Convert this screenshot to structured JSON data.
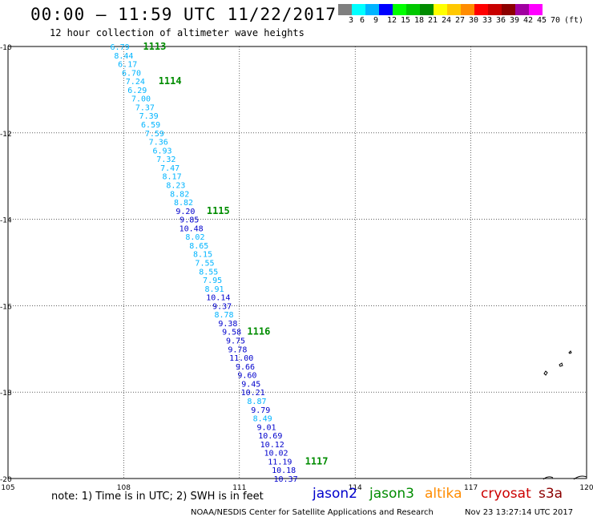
{
  "header": {
    "title": "00:00 — 11:59 UTC 11/22/2017",
    "subtitle": "12 hour collection of altimeter wave heights"
  },
  "legend": {
    "colors": [
      "#7f7f7f",
      "#00ffff",
      "#00b4ff",
      "#0000ff",
      "#00ff00",
      "#00c800",
      "#008c00",
      "#ffff00",
      "#ffc800",
      "#ff8c00",
      "#ff0000",
      "#c80000",
      "#8c0000",
      "#a000a0",
      "#ff00ff",
      "#ffffff"
    ],
    "labels": [
      "3",
      "6",
      "9",
      "12",
      "15",
      "18",
      "21",
      "24",
      "27",
      "30",
      "33",
      "36",
      "39",
      "42",
      "45",
      "70",
      "(ft)"
    ]
  },
  "map": {
    "lon_ticks": [
      "105",
      "108",
      "111",
      "114",
      "117",
      "120"
    ],
    "lat_ticks": [
      "-10",
      "-12",
      "-14",
      "-16",
      "-18",
      "-20"
    ]
  },
  "track": {
    "points": [
      {
        "v": "6.79",
        "lon": 107.9,
        "lat": -10.0
      },
      {
        "v": "8.44",
        "lon": 108.0,
        "lat": -10.2
      },
      {
        "v": "6.17",
        "lon": 108.1,
        "lat": -10.4
      },
      {
        "v": "6.70",
        "lon": 108.2,
        "lat": -10.6
      },
      {
        "v": "7.24",
        "lon": 108.3,
        "lat": -10.8
      },
      {
        "v": "6.29",
        "lon": 108.35,
        "lat": -11.0
      },
      {
        "v": "7.00",
        "lon": 108.45,
        "lat": -11.2
      },
      {
        "v": "7.37",
        "lon": 108.55,
        "lat": -11.4
      },
      {
        "v": "7.39",
        "lon": 108.65,
        "lat": -11.6
      },
      {
        "v": "6.59",
        "lon": 108.7,
        "lat": -11.8
      },
      {
        "v": "7.59",
        "lon": 108.8,
        "lat": -12.0
      },
      {
        "v": "7.36",
        "lon": 108.9,
        "lat": -12.2
      },
      {
        "v": "6.93",
        "lon": 109.0,
        "lat": -12.4
      },
      {
        "v": "7.32",
        "lon": 109.1,
        "lat": -12.6
      },
      {
        "v": "7.47",
        "lon": 109.2,
        "lat": -12.8
      },
      {
        "v": "8.17",
        "lon": 109.25,
        "lat": -13.0
      },
      {
        "v": "8.23",
        "lon": 109.35,
        "lat": -13.2
      },
      {
        "v": "8.82",
        "lon": 109.45,
        "lat": -13.4
      },
      {
        "v": "8.82",
        "lon": 109.55,
        "lat": -13.6
      },
      {
        "v": "9.20",
        "lon": 109.6,
        "lat": -13.8
      },
      {
        "v": "9.85",
        "lon": 109.7,
        "lat": -14.0
      },
      {
        "v": "10.48",
        "lon": 109.75,
        "lat": -14.2
      },
      {
        "v": "8.02",
        "lon": 109.85,
        "lat": -14.4
      },
      {
        "v": "8.65",
        "lon": 109.95,
        "lat": -14.6
      },
      {
        "v": "8.15",
        "lon": 110.05,
        "lat": -14.8
      },
      {
        "v": "7.55",
        "lon": 110.1,
        "lat": -15.0
      },
      {
        "v": "8.55",
        "lon": 110.2,
        "lat": -15.2
      },
      {
        "v": "7.95",
        "lon": 110.3,
        "lat": -15.4
      },
      {
        "v": "8.91",
        "lon": 110.35,
        "lat": -15.6
      },
      {
        "v": "10.14",
        "lon": 110.45,
        "lat": -15.8
      },
      {
        "v": "9.37",
        "lon": 110.55,
        "lat": -16.0
      },
      {
        "v": "8.78",
        "lon": 110.6,
        "lat": -16.2
      },
      {
        "v": "9.38",
        "lon": 110.7,
        "lat": -16.4
      },
      {
        "v": "9.58",
        "lon": 110.8,
        "lat": -16.6
      },
      {
        "v": "9.75",
        "lon": 110.9,
        "lat": -16.8
      },
      {
        "v": "9.78",
        "lon": 110.95,
        "lat": -17.0
      },
      {
        "v": "11.00",
        "lon": 111.05,
        "lat": -17.2
      },
      {
        "v": "9.66",
        "lon": 111.15,
        "lat": -17.4
      },
      {
        "v": "9.60",
        "lon": 111.2,
        "lat": -17.6
      },
      {
        "v": "9.45",
        "lon": 111.3,
        "lat": -17.8
      },
      {
        "v": "10.21",
        "lon": 111.35,
        "lat": -18.0
      },
      {
        "v": "8.87",
        "lon": 111.45,
        "lat": -18.2
      },
      {
        "v": "9.79",
        "lon": 111.55,
        "lat": -18.4
      },
      {
        "v": "8.49",
        "lon": 111.6,
        "lat": -18.6
      },
      {
        "v": "9.01",
        "lon": 111.7,
        "lat": -18.8
      },
      {
        "v": "10.69",
        "lon": 111.8,
        "lat": -19.0
      },
      {
        "v": "10.12",
        "lon": 111.85,
        "lat": -19.2
      },
      {
        "v": "10.02",
        "lon": 111.95,
        "lat": -19.4
      },
      {
        "v": "11.19",
        "lon": 112.05,
        "lat": -19.6
      },
      {
        "v": "10.18",
        "lon": 112.15,
        "lat": -19.8
      },
      {
        "v": "10.37",
        "lon": 112.2,
        "lat": -20.0
      }
    ],
    "markers": [
      {
        "text": "1113",
        "lon": 108.8,
        "lat": -10.0
      },
      {
        "text": "1114",
        "lon": 109.2,
        "lat": -10.8
      },
      {
        "text": "1115",
        "lon": 110.45,
        "lat": -13.8
      },
      {
        "text": "1116",
        "lon": 111.5,
        "lat": -16.6
      },
      {
        "text": "1117",
        "lon": 113.0,
        "lat": -19.6
      }
    ]
  },
  "satellites": [
    {
      "name": "jason2",
      "color": "#0000cc"
    },
    {
      "name": "jason3",
      "color": "#008c00"
    },
    {
      "name": "altika",
      "color": "#ff8c00"
    },
    {
      "name": "cryosat",
      "color": "#cc0000"
    },
    {
      "name": "s3a",
      "color": "#8c0000"
    }
  ],
  "notes": {
    "note": "note: 1) Time is in UTC; 2) SWH is in feet",
    "source": "NOAA/NESDIS Center for Satellite Applications and Research",
    "generated": "Nov 23 13:27:14 UTC 2017"
  }
}
